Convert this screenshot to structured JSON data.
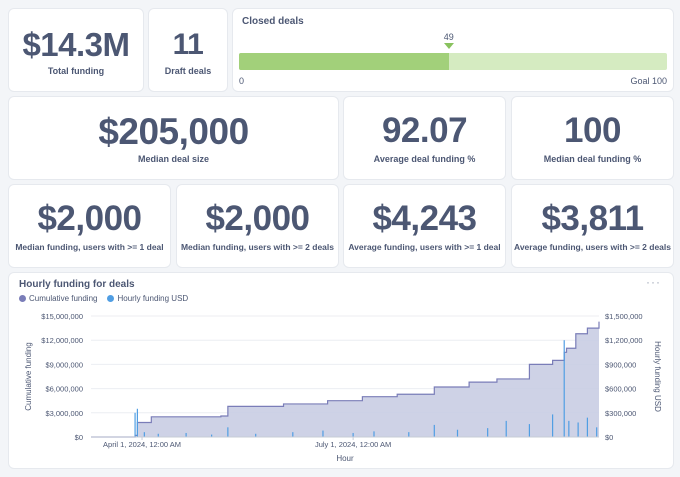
{
  "kpis": {
    "total_funding": {
      "value": "$14.3M",
      "label": "Total funding"
    },
    "draft_deals": {
      "value": "11",
      "label": "Draft deals"
    },
    "median_deal_size": {
      "value": "$205,000",
      "label": "Median deal size"
    },
    "avg_deal_funding_pct": {
      "value": "92.07",
      "label": "Average deal funding %"
    },
    "median_deal_funding_pct": {
      "value": "100",
      "label": "Median deal funding %"
    },
    "median_funding_1": {
      "value": "$2,000",
      "label": "Median funding, users with >= 1 deal"
    },
    "median_funding_2": {
      "value": "$2,000",
      "label": "Median funding, users with >= 2 deals"
    },
    "avg_funding_1": {
      "value": "$4,243",
      "label": "Average funding, users with >= 1 deal"
    },
    "avg_funding_2": {
      "value": "$3,811",
      "label": "Average funding, users with >= 2 deals"
    }
  },
  "closed_deals": {
    "title": "Closed deals",
    "value": 49,
    "value_label": "49",
    "goal": 100,
    "min_label": "0",
    "goal_label": "Goal 100",
    "colors": {
      "fill": "#a2d07a",
      "track": "#d5ebc1",
      "marker": "#89c25e"
    }
  },
  "chart": {
    "title": "Hourly funding for deals",
    "menu_icon": "more-icon",
    "legend": [
      {
        "label": "Cumulative funding",
        "color": "#7a7db8"
      },
      {
        "label": "Hourly funding USD",
        "color": "#509ee3"
      }
    ],
    "left_axis_label": "Cumulative funding",
    "right_axis_label": "Hourly funding USD",
    "x_axis_label": "Hour",
    "left_ticks": [
      "$15,000,000",
      "$12,000,000",
      "$9,000,000",
      "$6,000,000",
      "$3,000,000",
      "$0"
    ],
    "right_ticks": [
      "$1,500,000",
      "$1,200,000",
      "$900,000",
      "$600,000",
      "$300,000",
      "$0"
    ],
    "x_ticks": [
      "April 1, 2024, 12:00 AM",
      "July 1, 2024, 12:00 AM"
    ]
  },
  "chart_data": {
    "type": "area",
    "title": "Hourly funding for deals",
    "xlabel": "Hour",
    "ylabel": "Cumulative funding",
    "y2label": "Hourly funding USD",
    "ylim": [
      0,
      15000000
    ],
    "y2lim": [
      0,
      1500000
    ],
    "x_range": [
      "2024-03-10",
      "2024-10-15"
    ],
    "grid": true,
    "legend": "top-left",
    "series": [
      {
        "name": "Cumulative funding",
        "type": "area",
        "axis": "left",
        "color": "#7a7db8",
        "x": [
          "2024-03-10",
          "2024-03-20",
          "2024-03-29",
          "2024-03-30",
          "2024-04-05",
          "2024-05-05",
          "2024-05-08",
          "2024-06-01",
          "2024-06-20",
          "2024-07-05",
          "2024-07-20",
          "2024-08-05",
          "2024-08-20",
          "2024-09-01",
          "2024-09-15",
          "2024-09-25",
          "2024-09-30",
          "2024-10-01",
          "2024-10-05",
          "2024-10-10",
          "2024-10-15"
        ],
        "values": [
          0,
          0,
          200000,
          1800000,
          2500000,
          2600000,
          3800000,
          4100000,
          4500000,
          5000000,
          5300000,
          6200000,
          6800000,
          7200000,
          9000000,
          9500000,
          10500000,
          11000000,
          12800000,
          13500000,
          14300000
        ]
      },
      {
        "name": "Hourly funding USD",
        "type": "bar",
        "axis": "right",
        "color": "#509ee3",
        "x": [
          "2024-03-29",
          "2024-03-30",
          "2024-04-02",
          "2024-04-08",
          "2024-04-20",
          "2024-05-01",
          "2024-05-08",
          "2024-05-20",
          "2024-06-05",
          "2024-06-18",
          "2024-07-01",
          "2024-07-10",
          "2024-07-25",
          "2024-08-05",
          "2024-08-15",
          "2024-08-28",
          "2024-09-05",
          "2024-09-15",
          "2024-09-25",
          "2024-09-30",
          "2024-10-02",
          "2024-10-06",
          "2024-10-10",
          "2024-10-14"
        ],
        "values": [
          300000,
          350000,
          60000,
          40000,
          50000,
          30000,
          120000,
          40000,
          60000,
          80000,
          50000,
          70000,
          60000,
          150000,
          90000,
          110000,
          200000,
          160000,
          280000,
          1200000,
          200000,
          180000,
          240000,
          120000
        ]
      }
    ]
  }
}
